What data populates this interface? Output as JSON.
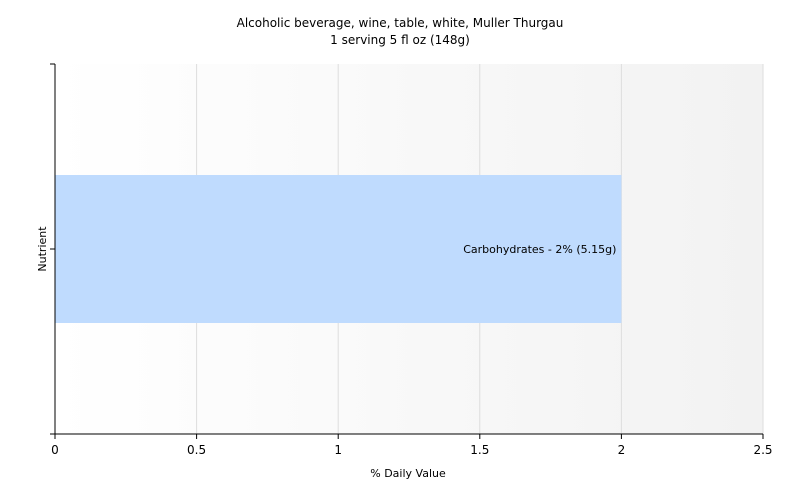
{
  "chart_data": {
    "type": "bar",
    "orientation": "horizontal",
    "title": "Alcoholic beverage, wine, table, white, Muller Thurgau",
    "subtitle": "1 serving 5 fl oz (148g)",
    "xlabel": "% Daily Value",
    "ylabel": "Nutrient",
    "xlim": [
      0,
      2.5
    ],
    "xticks": [
      "0",
      "0.5",
      "1",
      "1.5",
      "2",
      "2.5"
    ],
    "grid": true,
    "categories": [
      "Carbohydrates"
    ],
    "values": [
      2
    ],
    "data_labels": [
      "Carbohydrates - 2% (5.15g)"
    ],
    "colors": {
      "bar": "#bfdbfe",
      "grid": "#dddddd",
      "axis": "#000000"
    }
  }
}
